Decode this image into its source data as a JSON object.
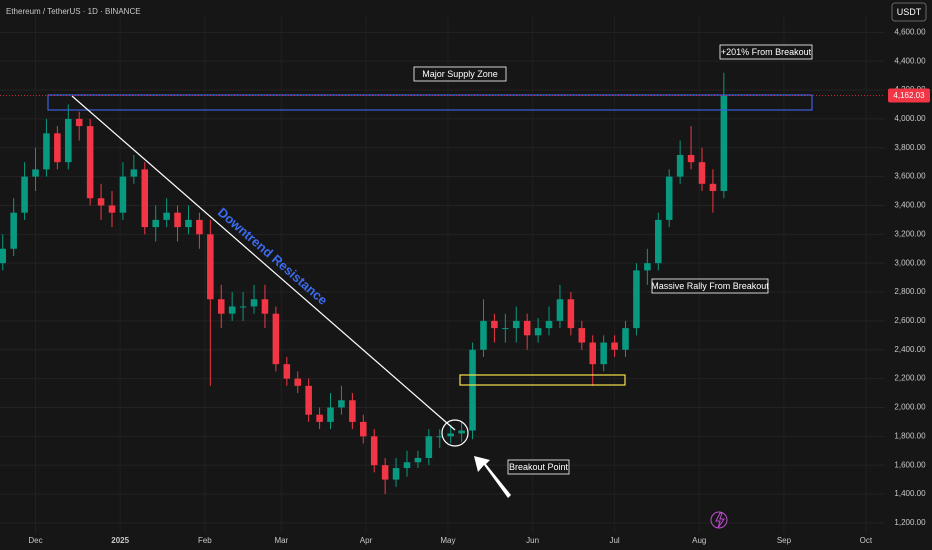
{
  "chart_data": {
    "type": "candlestick",
    "title": "Ethereum / TetherUS · 1D · BINANCE",
    "currency": "USDT",
    "x": [
      -12,
      -8,
      -4,
      0,
      4,
      8,
      12,
      16,
      20,
      24,
      28,
      32,
      36,
      40,
      44,
      48,
      52,
      56,
      60,
      64,
      68,
      72,
      76,
      80,
      84,
      88,
      92,
      96,
      100,
      104,
      108,
      112,
      116,
      120,
      124,
      128,
      132,
      136,
      140,
      144,
      148,
      152,
      156,
      160,
      164,
      168,
      172,
      176,
      180,
      184,
      188,
      192,
      196,
      200,
      204,
      208,
      212,
      216,
      220,
      224,
      228,
      232,
      236,
      240,
      244,
      248,
      252
    ],
    "open": [
      3000,
      3100,
      3350,
      3600,
      3650,
      3900,
      3700,
      4000,
      3950,
      3450,
      3400,
      3350,
      3600,
      3650,
      3250,
      3300,
      3350,
      3250,
      3300,
      3200,
      2750,
      2650,
      2700,
      2700,
      2750,
      2650,
      2300,
      2200,
      2150,
      1950,
      1900,
      2000,
      2050,
      1900,
      1800,
      1600,
      1500,
      1580,
      1620,
      1650,
      1800,
      1800,
      1820,
      1840,
      2400,
      2600,
      2550,
      2550,
      2600,
      2500,
      2550,
      2600,
      2750,
      2550,
      2450,
      2300,
      2450,
      2400,
      2550,
      2950,
      3000,
      3300,
      3600,
      3750,
      3700,
      3550,
      3500
    ],
    "high": [
      3200,
      3450,
      3700,
      3800,
      4000,
      3950,
      4100,
      4050,
      4000,
      3550,
      3500,
      3700,
      3750,
      3700,
      3400,
      3450,
      3400,
      3400,
      3350,
      3300,
      2850,
      2800,
      2800,
      2850,
      2850,
      2700,
      2350,
      2250,
      2200,
      2000,
      2100,
      2150,
      2100,
      1950,
      1850,
      1650,
      1650,
      1700,
      1700,
      1850,
      1850,
      1880,
      1900,
      2450,
      2750,
      2650,
      2650,
      2700,
      2650,
      2620,
      2700,
      2850,
      2800,
      2600,
      2500,
      2500,
      2500,
      2600,
      3000,
      3100,
      3350,
      3650,
      3850,
      3950,
      3800,
      3650,
      4320
    ],
    "low": [
      2950,
      3050,
      3300,
      3500,
      3600,
      3650,
      3650,
      3850,
      3400,
      3300,
      3250,
      3300,
      3550,
      3200,
      3150,
      3250,
      3150,
      3200,
      3100,
      2150,
      2550,
      2600,
      2600,
      2650,
      2550,
      2250,
      2150,
      2100,
      1900,
      1850,
      1850,
      1950,
      1850,
      1750,
      1550,
      1400,
      1450,
      1520,
      1580,
      1600,
      1720,
      1750,
      1760,
      1780,
      2350,
      2450,
      2450,
      2450,
      2400,
      2450,
      2500,
      2550,
      2500,
      2400,
      2150,
      2250,
      2350,
      2350,
      2500,
      2850,
      2950,
      3250,
      3550,
      3650,
      3500,
      3350,
      3450
    ],
    "close": [
      3100,
      3350,
      3600,
      3650,
      3900,
      3700,
      4000,
      3950,
      3450,
      3400,
      3350,
      3600,
      3650,
      3250,
      3300,
      3350,
      3250,
      3300,
      3200,
      2750,
      2650,
      2700,
      2700,
      2750,
      2650,
      2300,
      2200,
      2150,
      1950,
      1900,
      2000,
      2050,
      1900,
      1800,
      1600,
      1500,
      1580,
      1620,
      1650,
      1800,
      1800,
      1820,
      1840,
      2400,
      2600,
      2550,
      2550,
      2600,
      2500,
      2550,
      2600,
      2750,
      2550,
      2450,
      2300,
      2450,
      2400,
      2550,
      2950,
      3000,
      3300,
      3600,
      3750,
      3700,
      3550,
      3500,
      4160
    ],
    "up_color": "#089981",
    "down_color": "#f23645",
    "last_price": {
      "value": 4162.03,
      "label": "4,162.03"
    },
    "xlim": [
      -13,
      311
    ],
    "xticks": [
      {
        "value": 0,
        "label": "Dec"
      },
      {
        "value": 31,
        "label": "2025"
      },
      {
        "value": 62,
        "label": "Feb"
      },
      {
        "value": 90,
        "label": "Mar"
      },
      {
        "value": 121,
        "label": "Apr"
      },
      {
        "value": 151,
        "label": "May"
      },
      {
        "value": 182,
        "label": "Jun"
      },
      {
        "value": 212,
        "label": "Jul"
      },
      {
        "value": 243,
        "label": "Aug"
      },
      {
        "value": 274,
        "label": "Sep"
      },
      {
        "value": 304,
        "label": "Oct"
      }
    ],
    "ylim": [
      1130,
      4720
    ],
    "yticks": [
      {
        "value": 1200,
        "label": "1,200.00"
      },
      {
        "value": 1400,
        "label": "1,400.00"
      },
      {
        "value": 1600,
        "label": "1,600.00"
      },
      {
        "value": 1800,
        "label": "1,800.00"
      },
      {
        "value": 2000,
        "label": "2,000.00"
      },
      {
        "value": 2200,
        "label": "2,200.00"
      },
      {
        "value": 2400,
        "label": "2,400.00"
      },
      {
        "value": 2600,
        "label": "2,600.00"
      },
      {
        "value": 2800,
        "label": "2,800.00"
      },
      {
        "value": 3000,
        "label": "3,000.00"
      },
      {
        "value": 3200,
        "label": "3,200.00"
      },
      {
        "value": 3400,
        "label": "3,400.00"
      },
      {
        "value": 3600,
        "label": "3,600.00"
      },
      {
        "value": 3800,
        "label": "3,800.00"
      },
      {
        "value": 4000,
        "label": "4,000.00"
      },
      {
        "value": 4200,
        "label": "4,200.00"
      },
      {
        "value": 4400,
        "label": "4,400.00"
      },
      {
        "value": 4600,
        "label": "4,600.00"
      }
    ],
    "grid": true,
    "annotations": {
      "supply_zone": "Major Supply Zone",
      "gain": "+201% From Breakout",
      "trend": "Downtrend Resistance",
      "rally": "Massive Rally From Breakout",
      "breakout": "Breakout Point"
    }
  }
}
